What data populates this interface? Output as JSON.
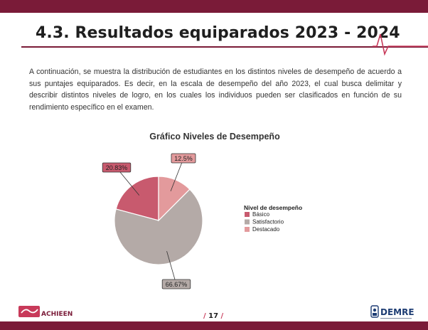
{
  "header": {
    "title": "4.3. Resultados equiparados 2023 - 2024"
  },
  "body": {
    "paragraph": "A continuación, se muestra la distribución de estudiantes en los distintos niveles de desempeño de acuerdo a sus puntajes equiparados. Es decir, en la escala de desempeño del año 2023, el cual busca delimitar y describir distintos niveles de logro, en los cuales los individuos pueden ser clasificados en función de su rendimiento específico en el examen."
  },
  "chart_data": {
    "type": "pie",
    "title": "Gráfico Niveles de Desempeño",
    "legend_title": "Nivel de desempeño",
    "legend_position": "right",
    "categories": [
      "Básico",
      "Satisfactorio",
      "Destacado"
    ],
    "values": [
      20.83,
      66.67,
      12.5
    ],
    "labels": [
      "20.83%",
      "66.67%",
      "12.5%"
    ],
    "colors": [
      "#c85a6e",
      "#b4aaa7",
      "#e39a9c"
    ]
  },
  "footer": {
    "left_logo_text": "ACHIEEN",
    "page_number": "17",
    "right_logo_text": "DEMRE"
  },
  "colors": {
    "brand_dark": "#7a1b38",
    "brand_accent": "#c83a5a"
  }
}
